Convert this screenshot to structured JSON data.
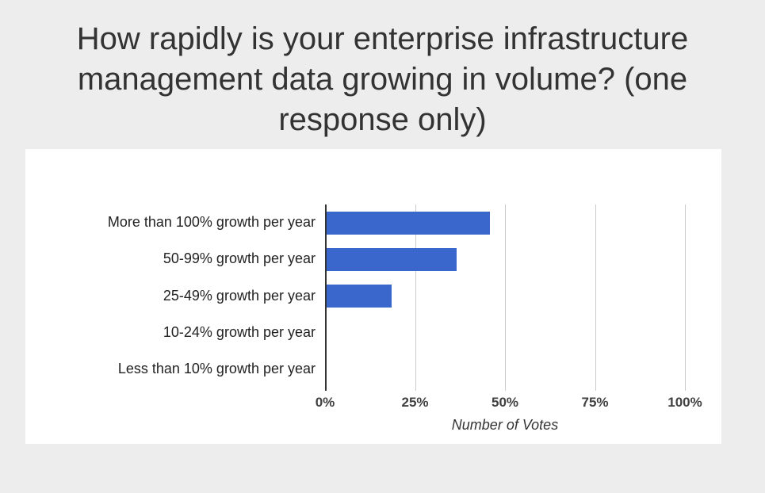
{
  "page": {
    "background_color": "#ededed",
    "card_background_color": "#ffffff"
  },
  "title": "How rapidly is your enterprise infrastructure management data growing in volume? (one response only)",
  "chart_data": {
    "type": "bar",
    "orientation": "horizontal",
    "title": "How rapidly is your enterprise infrastructure management data growing in volume? (one response only)",
    "categories": [
      "More than 100% growth per year",
      "50-99% growth per year",
      "25-49% growth per year",
      "10-24% growth per year",
      "Less than 10% growth per year"
    ],
    "values": [
      45.5,
      36.4,
      18.2,
      0,
      0
    ],
    "value_unit": "percent of votes",
    "xlabel": "Number of Votes",
    "ylabel": "",
    "xlim": [
      0,
      100
    ],
    "x_ticks": [
      0,
      25,
      50,
      75,
      100
    ],
    "x_tick_labels": [
      "0%",
      "25%",
      "50%",
      "75%",
      "100%"
    ],
    "grid": "vertical gridlines on",
    "legend": "none",
    "bar_color": "#3a67cb",
    "axis_line_color": "#333333",
    "gridline_color": "#cccccc",
    "tick_label_color": "#404040",
    "category_label_color": "#222222"
  }
}
